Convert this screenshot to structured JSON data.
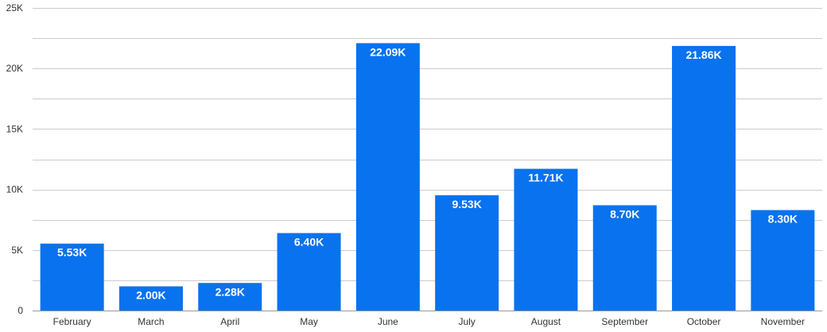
{
  "chart_data": {
    "type": "bar",
    "categories": [
      "February",
      "March",
      "April",
      "May",
      "June",
      "July",
      "August",
      "September",
      "October",
      "November"
    ],
    "values": [
      5530,
      2000,
      2280,
      6400,
      22090,
      9530,
      11710,
      8700,
      21860,
      8300
    ],
    "data_labels": [
      "5.53K",
      "2.00K",
      "2.28K",
      "6.40K",
      "22.09K",
      "9.53K",
      "11.71K",
      "8.70K",
      "21.86K",
      "8.30K"
    ],
    "title": "",
    "xlabel": "",
    "ylabel": "",
    "ylim": [
      0,
      25000
    ],
    "yticks": [
      0,
      5000,
      10000,
      15000,
      20000,
      25000
    ],
    "ytick_labels": [
      "0",
      "5K",
      "10K",
      "15K",
      "20K",
      "25K"
    ],
    "grid": true,
    "legend": "none",
    "bar_color": "#0972ee"
  }
}
